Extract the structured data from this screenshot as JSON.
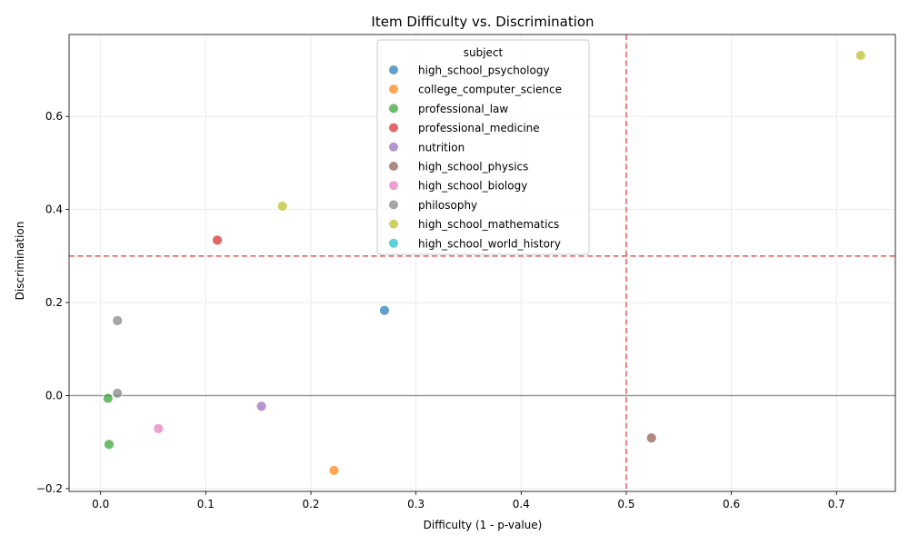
{
  "chart_data": {
    "type": "scatter",
    "title": "Item Difficulty vs. Discrimination",
    "xlabel": "Difficulty (1 - p-value)",
    "ylabel": "Discrimination",
    "xlim": [
      -0.03,
      0.756
    ],
    "ylim": [
      -0.206,
      0.776
    ],
    "xticks": [
      0.0,
      0.1,
      0.2,
      0.3,
      0.4,
      0.5,
      0.6,
      0.7
    ],
    "xtick_labels": [
      "0.0",
      "0.1",
      "0.2",
      "0.3",
      "0.4",
      "0.5",
      "0.6",
      "0.7"
    ],
    "yticks": [
      -0.2,
      0.0,
      0.2,
      0.4,
      0.6
    ],
    "ytick_labels": [
      "−0.2",
      "0.0",
      "0.2",
      "0.4",
      "0.6"
    ],
    "grid": true,
    "reference_lines": {
      "vertical_x": 0.5,
      "horizontal_y": 0.3,
      "zero_y": 0.0
    },
    "legend": {
      "title": "subject",
      "placement": "upper-center"
    },
    "series": [
      {
        "name": "high_school_psychology",
        "color": "#1f77b4",
        "points": [
          [
            0.27,
            0.183
          ]
        ]
      },
      {
        "name": "college_computer_science",
        "color": "#ff7f0e",
        "points": [
          [
            0.222,
            -0.161
          ]
        ]
      },
      {
        "name": "professional_law",
        "color": "#2ca02c",
        "points": [
          [
            0.007,
            -0.006
          ],
          [
            0.008,
            -0.105
          ]
        ]
      },
      {
        "name": "professional_medicine",
        "color": "#d62728",
        "points": [
          [
            0.111,
            0.334
          ]
        ]
      },
      {
        "name": "nutrition",
        "color": "#9467bd",
        "points": [
          [
            0.153,
            -0.023
          ]
        ]
      },
      {
        "name": "high_school_physics",
        "color": "#8c564b",
        "points": [
          [
            0.524,
            -0.091
          ]
        ]
      },
      {
        "name": "high_school_biology",
        "color": "#e377c2",
        "points": [
          [
            0.055,
            -0.071
          ]
        ]
      },
      {
        "name": "philosophy",
        "color": "#7f7f7f",
        "points": [
          [
            0.016,
            0.161
          ],
          [
            0.016,
            0.005
          ]
        ]
      },
      {
        "name": "high_school_mathematics",
        "color": "#bcbd22",
        "points": [
          [
            0.173,
            0.407
          ],
          [
            0.723,
            0.731
          ]
        ]
      },
      {
        "name": "high_school_world_history",
        "color": "#17becf",
        "points": []
      }
    ]
  }
}
